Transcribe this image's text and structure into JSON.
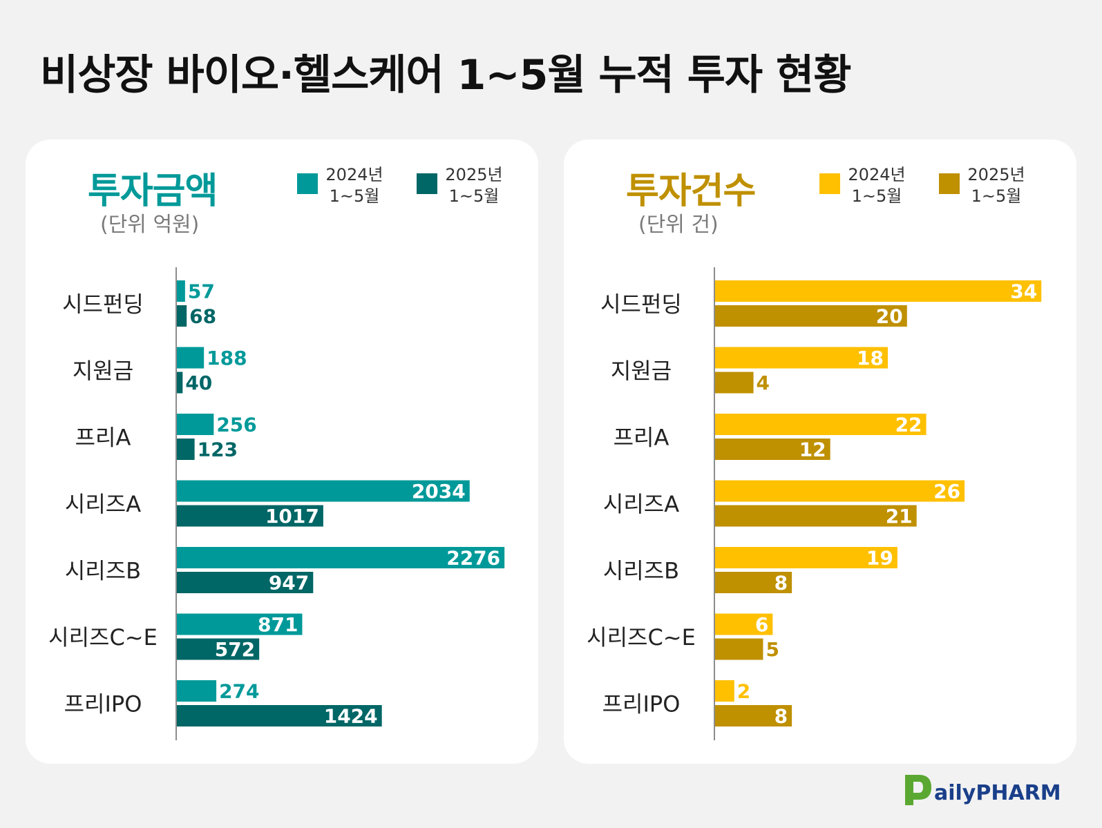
{
  "title": "비상장 바이오·헬스케어 1~5월 누적 투자 현황",
  "categories": [
    "시드펀딩",
    "지원금",
    "프리A",
    "시리즈A",
    "시리즈B",
    "시리즈C~E",
    "프리IPO"
  ],
  "logo_text": "DailyPHARM",
  "colors": {
    "amount_2024": "#009999",
    "amount_2025": "#006666",
    "count_2024": "#ffc000",
    "count_2025": "#bf9000",
    "axis": "#666666"
  },
  "chart_data": [
    {
      "type": "bar",
      "orientation": "horizontal",
      "title": "투자금액",
      "unit": "(단위 억원)",
      "categories": [
        "시드펀딩",
        "지원금",
        "프리A",
        "시리즈A",
        "시리즈B",
        "시리즈C~E",
        "프리IPO"
      ],
      "series": [
        {
          "name": "2024년 1~5월",
          "legend": [
            "2024년",
            "1~5월"
          ],
          "values": [
            57,
            188,
            256,
            2034,
            2276,
            871,
            274
          ]
        },
        {
          "name": "2025년 1~5월",
          "legend": [
            "2025년",
            "1~5월"
          ],
          "values": [
            68,
            40,
            123,
            1017,
            947,
            572,
            1424
          ]
        }
      ],
      "xlim": [
        0,
        2400
      ],
      "grid": false,
      "legend_position": "top-right"
    },
    {
      "type": "bar",
      "orientation": "horizontal",
      "title": "투자건수",
      "unit": "(단위 건)",
      "categories": [
        "시드펀딩",
        "지원금",
        "프리A",
        "시리즈A",
        "시리즈B",
        "시리즈C~E",
        "프리IPO"
      ],
      "series": [
        {
          "name": "2024년 1~5월",
          "legend": [
            "2024년",
            "1~5월"
          ],
          "values": [
            34,
            18,
            22,
            26,
            19,
            6,
            2
          ]
        },
        {
          "name": "2025년 1~5월",
          "legend": [
            "2025년",
            "1~5월"
          ],
          "values": [
            20,
            4,
            12,
            21,
            8,
            5,
            8
          ]
        }
      ],
      "xlim": [
        0,
        36
      ],
      "grid": false,
      "legend_position": "top-right"
    }
  ]
}
